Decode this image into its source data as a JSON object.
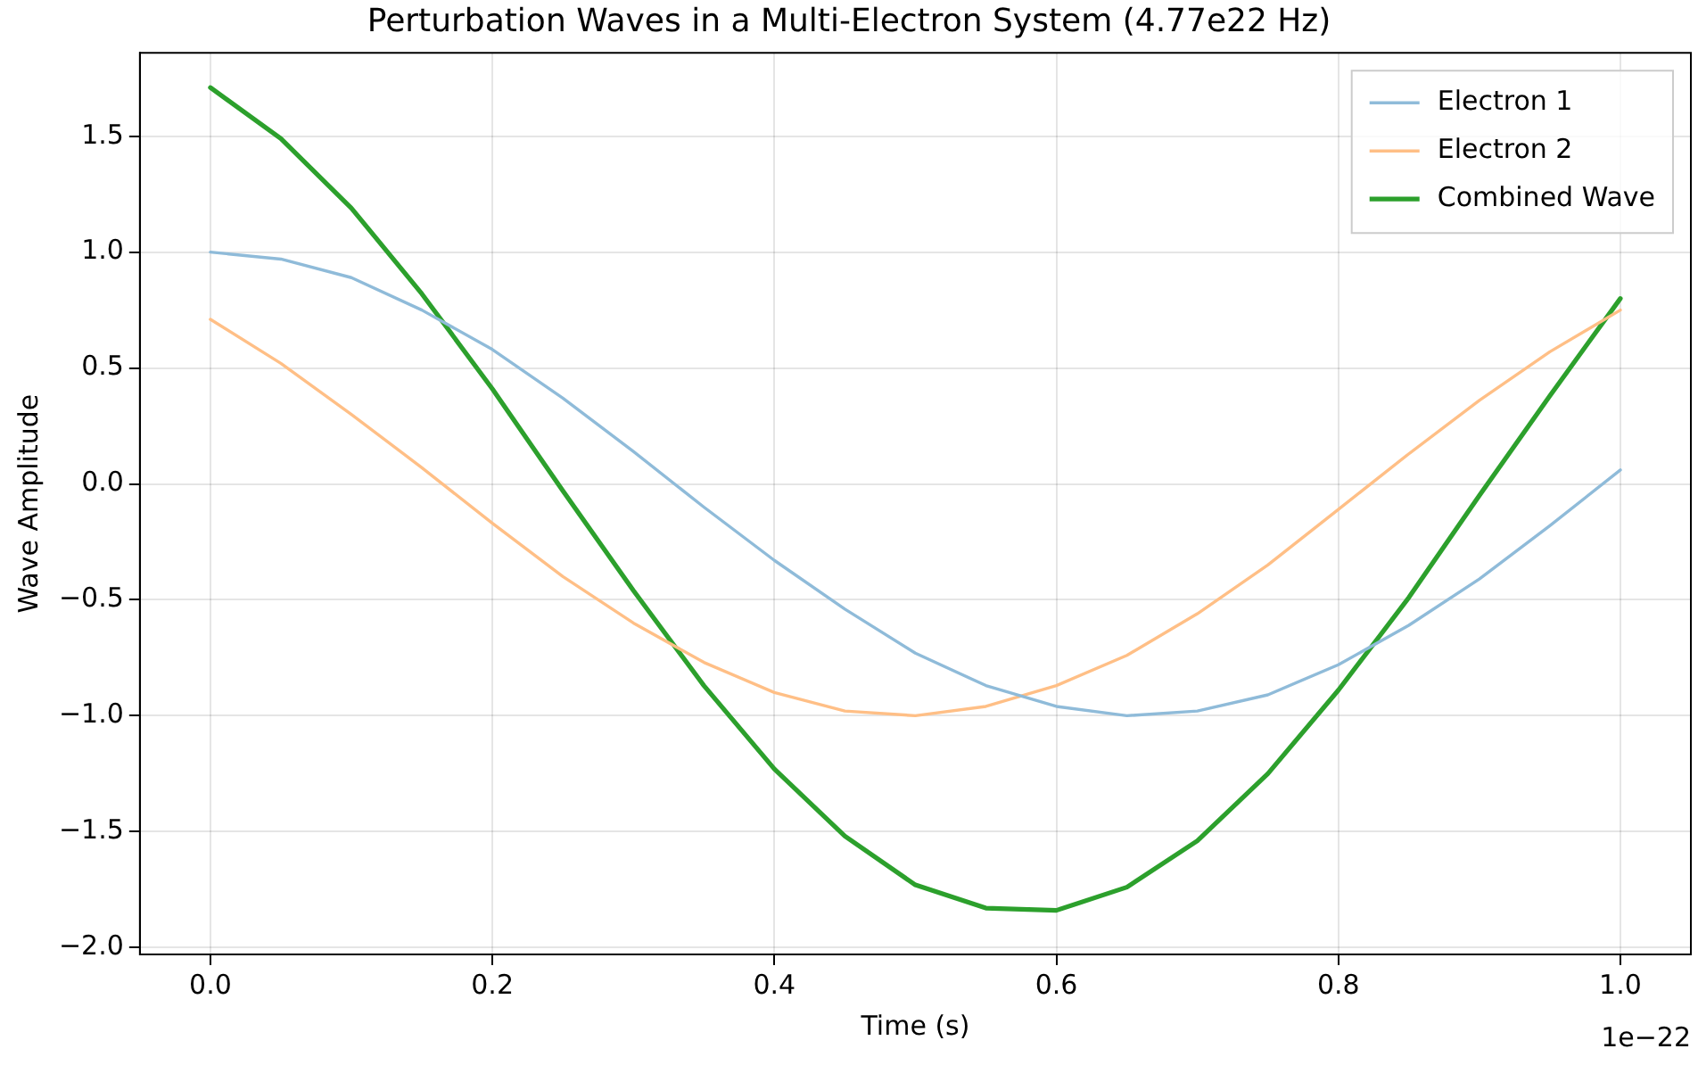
{
  "chart_data": {
    "type": "line",
    "title": "Perturbation Waves in a Multi-Electron System (4.77e22 Hz)",
    "xlabel": "Time (s)",
    "ylabel": "Wave Amplitude",
    "x": [
      0,
      0.05,
      0.1,
      0.15,
      0.2,
      0.25,
      0.3,
      0.35,
      0.4,
      0.45,
      0.5,
      0.55,
      0.6,
      0.65,
      0.7,
      0.75,
      0.8,
      0.85,
      0.9,
      0.95,
      1.0
    ],
    "series": [
      {
        "name": "Electron 1",
        "color": "#8fbbd9",
        "values": [
          1.0,
          0.97,
          0.89,
          0.75,
          0.58,
          0.37,
          0.14,
          -0.1,
          -0.33,
          -0.54,
          -0.73,
          -0.87,
          -0.96,
          -1.0,
          -0.98,
          -0.91,
          -0.78,
          -0.61,
          -0.41,
          -0.18,
          0.06
        ]
      },
      {
        "name": "Electron 2",
        "color": "#ffbf86",
        "values": [
          0.71,
          0.52,
          0.3,
          0.07,
          -0.17,
          -0.4,
          -0.6,
          -0.77,
          -0.9,
          -0.98,
          -1.0,
          -0.96,
          -0.87,
          -0.74,
          -0.56,
          -0.35,
          -0.11,
          0.13,
          0.36,
          0.57,
          0.75
        ]
      },
      {
        "name": "Combined Wave",
        "color": "#2ca02c",
        "values": [
          1.71,
          1.49,
          1.19,
          0.82,
          0.41,
          -0.03,
          -0.46,
          -0.87,
          -1.23,
          -1.52,
          -1.73,
          -1.83,
          -1.84,
          -1.74,
          -1.54,
          -1.25,
          -0.89,
          -0.49,
          -0.05,
          0.38,
          0.8
        ]
      }
    ],
    "xlim": [
      -0.05,
      1.05
    ],
    "ylim": [
      -2.03,
      1.86
    ],
    "xticks": [
      {
        "value": 0,
        "label": "0.0"
      },
      {
        "value": 0.2,
        "label": "0.2"
      },
      {
        "value": 0.4,
        "label": "0.4"
      },
      {
        "value": 0.6,
        "label": "0.6"
      },
      {
        "value": 0.8,
        "label": "0.8"
      },
      {
        "value": 1.0,
        "label": "1.0"
      }
    ],
    "yticks": [
      {
        "value": -2,
        "label": "−2.0"
      },
      {
        "value": -1.5,
        "label": "−1.5"
      },
      {
        "value": -1,
        "label": "−1.0"
      },
      {
        "value": -0.5,
        "label": "−0.5"
      },
      {
        "value": 0,
        "label": "0.0"
      },
      {
        "value": 0.5,
        "label": "0.5"
      },
      {
        "value": 1,
        "label": "1.0"
      },
      {
        "value": 1.5,
        "label": "1.5"
      }
    ],
    "annotations": [
      "1e−22"
    ],
    "grid": true,
    "legend": "top right",
    "marker": "none",
    "line_style": "solid"
  }
}
